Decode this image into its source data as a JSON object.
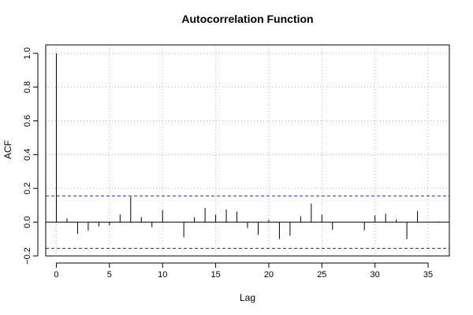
{
  "chart_data": {
    "type": "bar",
    "title": "Autocorrelation Function",
    "xlabel": "Lag",
    "ylabel": "ACF",
    "xlim": [
      -1,
      37
    ],
    "ylim": [
      -0.2,
      1.05
    ],
    "xticks": [
      0,
      5,
      10,
      15,
      20,
      25,
      30,
      35
    ],
    "yticks": [
      -0.2,
      0.0,
      0.2,
      0.4,
      0.6,
      0.8,
      1.0
    ],
    "ytick_labels": [
      "−0.2",
      "0.0",
      "0.2",
      "0.4",
      "0.6",
      "0.8",
      "1.0"
    ],
    "grid": true,
    "confidence_band": 0.155,
    "colors": {
      "bars": "#000000",
      "band": "#2222cc",
      "grid": "#bbbbbb",
      "zero": "#000000"
    },
    "lags": [
      0,
      1,
      2,
      3,
      4,
      5,
      6,
      7,
      8,
      9,
      10,
      11,
      12,
      13,
      14,
      15,
      16,
      17,
      18,
      19,
      20,
      21,
      22,
      23,
      24,
      25,
      26,
      27,
      28,
      29,
      30,
      31,
      32,
      33,
      34,
      35,
      36
    ],
    "values": [
      1.0,
      0.022,
      -0.07,
      -0.05,
      -0.025,
      -0.02,
      0.045,
      0.15,
      0.03,
      -0.03,
      0.07,
      0.002,
      -0.09,
      0.028,
      0.085,
      0.045,
      0.075,
      0.062,
      -0.035,
      -0.075,
      0.015,
      -0.1,
      -0.08,
      0.035,
      0.11,
      0.045,
      -0.045,
      0.002,
      0.0,
      -0.048,
      0.04,
      0.05,
      0.015,
      -0.1,
      0.065,
      0.002,
      0.004
    ]
  }
}
